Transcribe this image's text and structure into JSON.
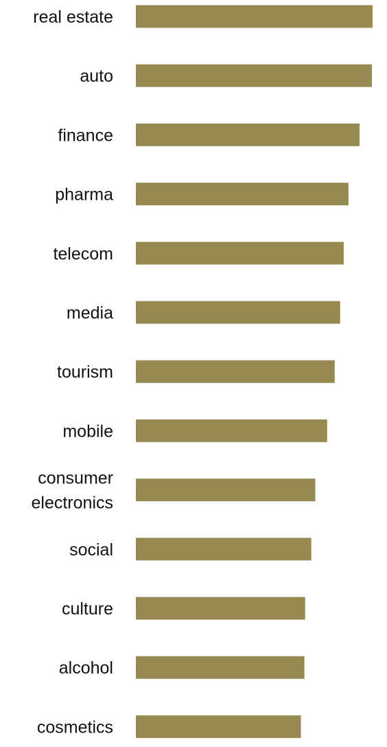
{
  "chart_data": {
    "type": "bar",
    "orientation": "horizontal",
    "title": "",
    "xlabel": "",
    "ylabel": "",
    "categories": [
      "real estate",
      "auto",
      "finance",
      "pharma",
      "telecom",
      "media",
      "tourism",
      "mobile",
      "consumer electronics",
      "social",
      "culture",
      "alcohol",
      "cosmetics"
    ],
    "values": [
      100,
      99.7,
      94.5,
      89.8,
      87.8,
      86.3,
      84,
      80.8,
      75.8,
      74.1,
      71.5,
      71.2,
      69.7
    ],
    "xlim": [
      0,
      100
    ],
    "grid": false,
    "legend": "none",
    "bar_color": "#968a52"
  }
}
